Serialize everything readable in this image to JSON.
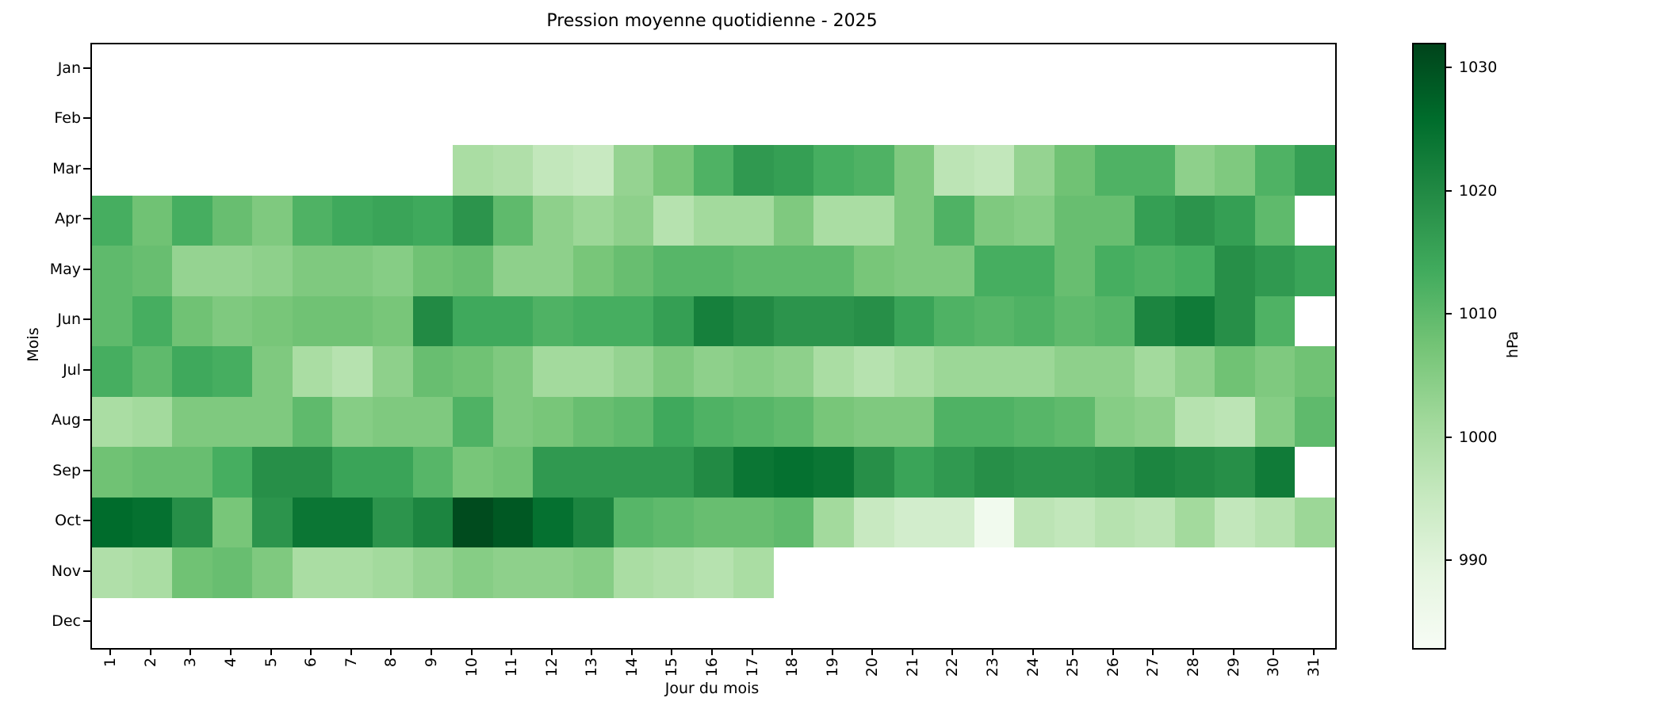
{
  "title": "Pression moyenne quotidienne - 2025",
  "chart_data": {
    "type": "heatmap",
    "title": "Pression moyenne quotidienne - 2025",
    "xlabel": "Jour du mois",
    "ylabel": "Mois",
    "colormap": "Greens",
    "colormap_stops": [
      "#f7fcf5",
      "#e5f5e0",
      "#c7e9c0",
      "#a1d99b",
      "#74c476",
      "#41ab5d",
      "#238b45",
      "#006d2c",
      "#00441b"
    ],
    "vmin": 983,
    "vmax": 1032,
    "x_tick_labels": [
      "1",
      "2",
      "3",
      "4",
      "5",
      "6",
      "7",
      "8",
      "9",
      "10",
      "11",
      "12",
      "13",
      "14",
      "15",
      "16",
      "17",
      "18",
      "19",
      "20",
      "21",
      "22",
      "23",
      "24",
      "25",
      "26",
      "27",
      "28",
      "29",
      "30",
      "31"
    ],
    "y_tick_labels": [
      "Jan",
      "Feb",
      "Mar",
      "Apr",
      "May",
      "Jun",
      "Jul",
      "Aug",
      "Sep",
      "Oct",
      "Nov",
      "Dec"
    ],
    "colorbar": {
      "label": "hPa",
      "ticks": [
        990,
        1000,
        1010,
        1020,
        1030
      ]
    },
    "series": [
      {
        "name": "Jan",
        "values": [
          null,
          null,
          null,
          null,
          null,
          null,
          null,
          null,
          null,
          null,
          null,
          null,
          null,
          null,
          null,
          null,
          null,
          null,
          null,
          null,
          null,
          null,
          null,
          null,
          null,
          null,
          null,
          null,
          null,
          null,
          null
        ]
      },
      {
        "name": "Feb",
        "values": [
          null,
          null,
          null,
          null,
          null,
          null,
          null,
          null,
          null,
          null,
          null,
          null,
          null,
          null,
          null,
          null,
          null,
          null,
          null,
          null,
          null,
          null,
          null,
          null,
          null,
          null,
          null,
          null,
          null,
          null,
          null
        ]
      },
      {
        "name": "Mar",
        "values": [
          null,
          null,
          null,
          null,
          null,
          null,
          null,
          null,
          null,
          1000,
          999,
          996,
          995,
          1003,
          1007,
          1012,
          1017,
          1016,
          1013,
          1012,
          1006,
          997,
          996,
          1003,
          1008,
          1012,
          1012,
          1004,
          1006,
          1012,
          1016
        ]
      },
      {
        "name": "Apr",
        "values": [
          1013,
          1008,
          1013,
          1009,
          1006,
          1012,
          1014,
          1015,
          1014,
          1018,
          1010,
          1004,
          1002,
          1004,
          998,
          1001,
          1001,
          1006,
          1000,
          1000,
          1006,
          1012,
          1006,
          1005,
          1009,
          1009,
          1016,
          1018,
          1016,
          1010,
          null
        ]
      },
      {
        "name": "May",
        "values": [
          1010,
          1009,
          1003,
          1003,
          1004,
          1006,
          1006,
          1005,
          1008,
          1009,
          1004,
          1004,
          1007,
          1009,
          1011,
          1011,
          1010,
          1010,
          1010,
          1007,
          1006,
          1006,
          1013,
          1013,
          1009,
          1013,
          1012,
          1013,
          1019,
          1017,
          1015
        ]
      },
      {
        "name": "Jun",
        "values": [
          1010,
          1013,
          1008,
          1006,
          1007,
          1008,
          1008,
          1007,
          1020,
          1014,
          1014,
          1012,
          1013,
          1013,
          1016,
          1022,
          1020,
          1018,
          1018,
          1019,
          1015,
          1012,
          1011,
          1012,
          1010,
          1011,
          1021,
          1023,
          1019,
          1012,
          null
        ]
      },
      {
        "name": "Jul",
        "values": [
          1013,
          1010,
          1014,
          1013,
          1006,
          1000,
          998,
          1004,
          1009,
          1008,
          1006,
          1001,
          1001,
          1003,
          1006,
          1004,
          1005,
          1004,
          1000,
          998,
          1000,
          1002,
          1002,
          1002,
          1004,
          1004,
          1001,
          1004,
          1008,
          1006,
          1008
        ]
      },
      {
        "name": "Aug",
        "values": [
          1000,
          1001,
          1006,
          1006,
          1006,
          1010,
          1005,
          1006,
          1006,
          1012,
          1006,
          1007,
          1009,
          1010,
          1014,
          1012,
          1011,
          1010,
          1007,
          1006,
          1006,
          1012,
          1012,
          1011,
          1010,
          1005,
          1004,
          998,
          997,
          1005,
          1010
        ]
      },
      {
        "name": "Sep",
        "values": [
          1008,
          1009,
          1009,
          1013,
          1019,
          1019,
          1015,
          1015,
          1011,
          1007,
          1008,
          1017,
          1017,
          1017,
          1017,
          1020,
          1024,
          1025,
          1024,
          1019,
          1015,
          1017,
          1019,
          1018,
          1018,
          1019,
          1021,
          1020,
          1019,
          1023,
          null
        ]
      },
      {
        "name": "Oct",
        "values": [
          1026,
          1025,
          1019,
          1007,
          1018,
          1024,
          1024,
          1018,
          1021,
          1031,
          1029,
          1025,
          1021,
          1011,
          1010,
          1009,
          1009,
          1010,
          1001,
          995,
          993,
          993,
          985,
          997,
          996,
          998,
          997,
          1001,
          996,
          998,
          1002
        ]
      },
      {
        "name": "Nov",
        "values": [
          999,
          1000,
          1008,
          1009,
          1006,
          1000,
          1000,
          1001,
          1003,
          1005,
          1004,
          1004,
          1005,
          1000,
          999,
          998,
          1000,
          null,
          null,
          null,
          null,
          null,
          null,
          null,
          null,
          null,
          null,
          null,
          null,
          null,
          null
        ]
      },
      {
        "name": "Dec",
        "values": [
          null,
          null,
          null,
          null,
          null,
          null,
          null,
          null,
          null,
          null,
          null,
          null,
          null,
          null,
          null,
          null,
          null,
          null,
          null,
          null,
          null,
          null,
          null,
          null,
          null,
          null,
          null,
          null,
          null,
          null,
          null
        ]
      }
    ]
  }
}
